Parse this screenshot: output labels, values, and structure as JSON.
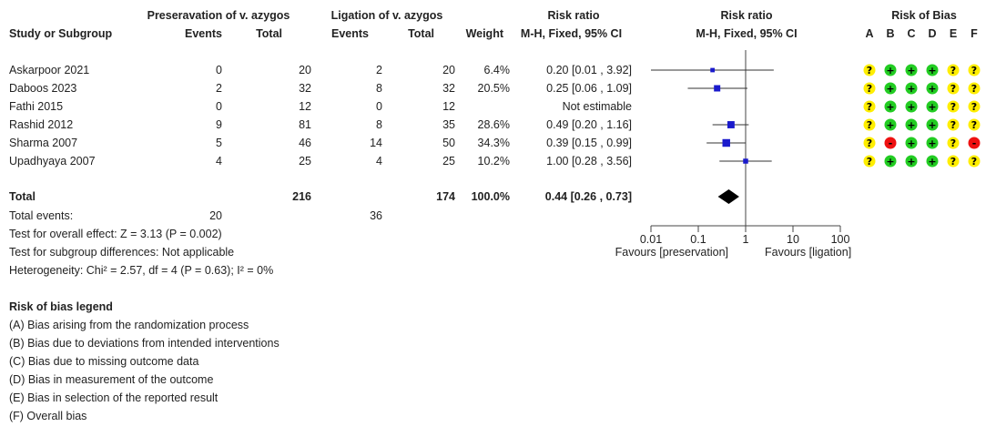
{
  "headers": {
    "study": "Study or Subgroup",
    "group1": "Preseravation of v. azygos",
    "group2": "Ligation of v. azygos",
    "events": "Events",
    "total": "Total",
    "weight": "Weight",
    "rr_title": "Risk ratio",
    "rr_method": "M-H, Fixed, 95% CI",
    "plot_title": "Risk ratio",
    "plot_method": "M-H, Fixed, 95% CI",
    "rob_title": "Risk of Bias",
    "rob_domains": [
      "A",
      "B",
      "C",
      "D",
      "E",
      "F"
    ]
  },
  "totals": {
    "label": "Total",
    "total1": "216",
    "total2": "174",
    "weight": "100.0%",
    "ci": "0.44 [0.26 , 0.73]",
    "events_label": "Total events:",
    "events1": "20",
    "events2": "36"
  },
  "tests": {
    "overall": "Test for overall effect: Z = 3.13 (P = 0.002)",
    "subgroup": "Test for subgroup differences: Not applicable",
    "heterogeneity": "Heterogeneity: Chi² = 2.57, df = 4 (P = 0.63); I² = 0%"
  },
  "axis": {
    "ticks": [
      "0.01",
      "0.1",
      "1",
      "10",
      "100"
    ],
    "favours_left": "Favours [preservation]",
    "favours_right": "Favours [ligation]"
  },
  "legend": {
    "title": "Risk of bias legend",
    "items": [
      "(A) Bias arising from the randomization process",
      "(B) Bias due to deviations from intended interventions",
      "(C) Bias due to missing outcome data",
      "(D) Bias in measurement of the outcome",
      "(E) Bias in selection of the reported result",
      "(F) Overall bias"
    ]
  },
  "chart_data": {
    "type": "forest",
    "scale": "log",
    "xlim": [
      0.01,
      100
    ],
    "x_ticks": [
      0.01,
      0.1,
      1,
      10,
      100
    ],
    "null_line": 1,
    "studies": [
      {
        "name": "Askarpoor 2021",
        "events1": "0",
        "total1": "20",
        "events2": "2",
        "total2": "20",
        "weight": "6.4%",
        "ci_text": "0.20 [0.01 , 3.92]",
        "rr": 0.2,
        "lo": 0.01,
        "hi": 3.92,
        "w": 6.4,
        "rob": [
          "?",
          "+",
          "+",
          "+",
          "?",
          "?"
        ]
      },
      {
        "name": "Daboos 2023",
        "events1": "2",
        "total1": "32",
        "events2": "8",
        "total2": "32",
        "weight": "20.5%",
        "ci_text": "0.25 [0.06 , 1.09]",
        "rr": 0.25,
        "lo": 0.06,
        "hi": 1.09,
        "w": 20.5,
        "rob": [
          "?",
          "+",
          "+",
          "+",
          "?",
          "?"
        ]
      },
      {
        "name": "Fathi 2015",
        "events1": "0",
        "total1": "12",
        "events2": "0",
        "total2": "12",
        "weight": "",
        "ci_text": "Not estimable",
        "rr": null,
        "lo": null,
        "hi": null,
        "w": 0,
        "rob": [
          "?",
          "+",
          "+",
          "+",
          "?",
          "?"
        ]
      },
      {
        "name": "Rashid 2012",
        "events1": "9",
        "total1": "81",
        "events2": "8",
        "total2": "35",
        "weight": "28.6%",
        "ci_text": "0.49 [0.20 , 1.16]",
        "rr": 0.49,
        "lo": 0.2,
        "hi": 1.16,
        "w": 28.6,
        "rob": [
          "?",
          "+",
          "+",
          "+",
          "?",
          "?"
        ]
      },
      {
        "name": "Sharma 2007",
        "events1": "5",
        "total1": "46",
        "events2": "14",
        "total2": "50",
        "weight": "34.3%",
        "ci_text": "0.39 [0.15 , 0.99]",
        "rr": 0.39,
        "lo": 0.15,
        "hi": 0.99,
        "w": 34.3,
        "rob": [
          "?",
          "-",
          "+",
          "+",
          "?",
          "-"
        ]
      },
      {
        "name": "Upadhyaya 2007",
        "events1": "4",
        "total1": "25",
        "events2": "4",
        "total2": "25",
        "weight": "10.2%",
        "ci_text": "1.00 [0.28 , 3.56]",
        "rr": 1.0,
        "lo": 0.28,
        "hi": 3.56,
        "w": 10.2,
        "rob": [
          "?",
          "+",
          "+",
          "+",
          "?",
          "?"
        ]
      }
    ],
    "pooled": {
      "rr": 0.44,
      "lo": 0.26,
      "hi": 0.73
    },
    "colors": {
      "square": "#1a1acc",
      "line": "#333333",
      "diamond": "#000000",
      "low": "#22cc22",
      "unclear": "#ffee00",
      "high": "#ee1111"
    }
  }
}
